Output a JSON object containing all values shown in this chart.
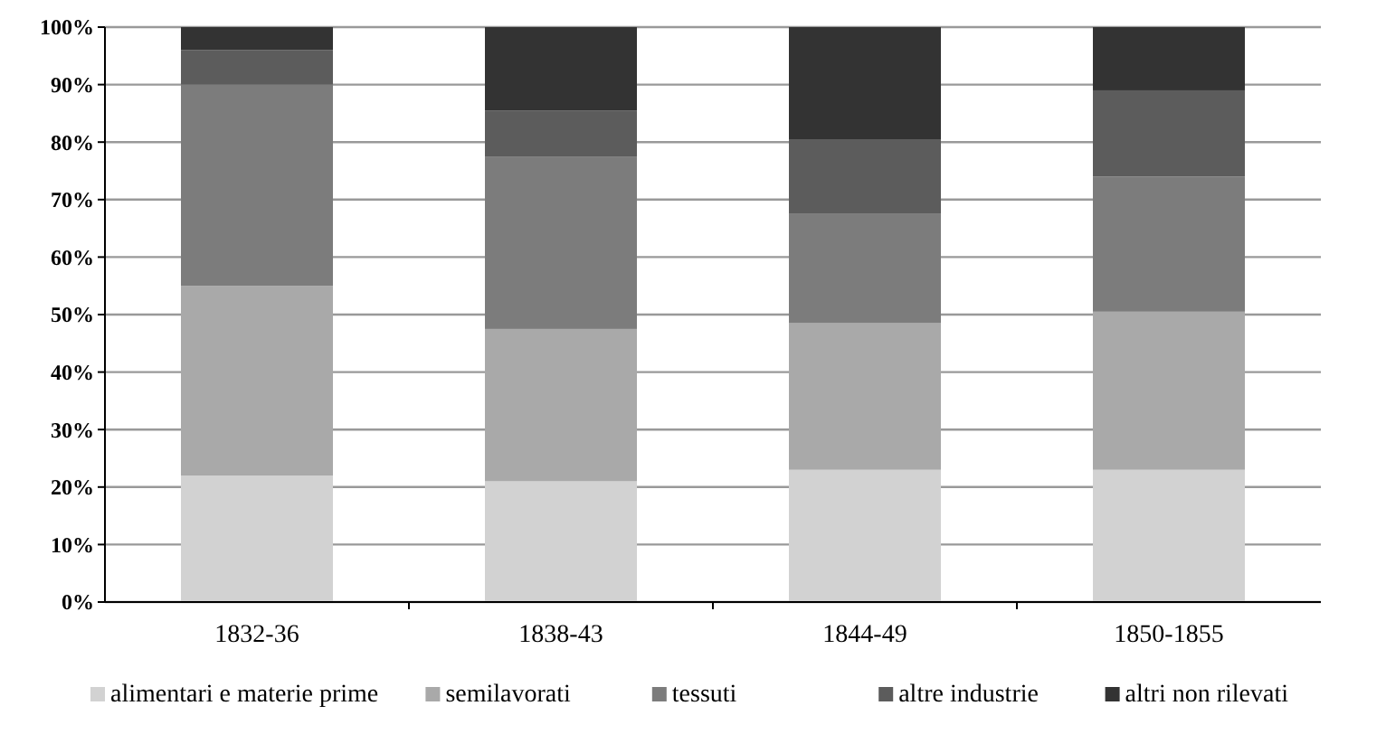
{
  "chart_data": {
    "type": "bar",
    "stacked": true,
    "categories": [
      "1832-36",
      "1838-43",
      "1844-49",
      "1850-1855"
    ],
    "series": [
      {
        "name": "alimentari e materie prime",
        "color": "#d2d2d2",
        "values": [
          22,
          21,
          23,
          23
        ]
      },
      {
        "name": "semilavorati",
        "color": "#a9a9a9",
        "values": [
          33,
          26.5,
          25.5,
          27.5
        ]
      },
      {
        "name": "tessuti",
        "color": "#7c7c7c",
        "values": [
          35,
          30,
          19,
          23.5
        ]
      },
      {
        "name": "altre industrie",
        "color": "#5c5c5c",
        "values": [
          6,
          8,
          13,
          15
        ]
      },
      {
        "name": "altri non rilevati",
        "color": "#333333",
        "values": [
          4,
          14.5,
          19.5,
          11
        ]
      }
    ],
    "ylim": [
      0,
      100
    ],
    "yticks": [
      {
        "value": 0,
        "label": "0%"
      },
      {
        "value": 10,
        "label": "10%"
      },
      {
        "value": 20,
        "label": "20%"
      },
      {
        "value": 30,
        "label": "30%"
      },
      {
        "value": 40,
        "label": "40%"
      },
      {
        "value": 50,
        "label": "50%"
      },
      {
        "value": 60,
        "label": "60%"
      },
      {
        "value": 70,
        "label": "70%"
      },
      {
        "value": 80,
        "label": "80%"
      },
      {
        "value": 90,
        "label": "90%"
      },
      {
        "value": 100,
        "label": "100%"
      }
    ],
    "grid": "y",
    "legend": "bottom"
  }
}
